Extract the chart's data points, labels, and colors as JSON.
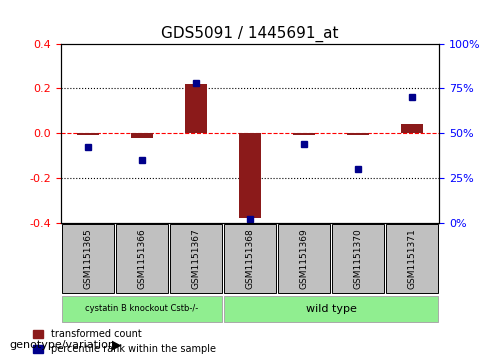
{
  "title": "GDS5091 / 1445691_at",
  "samples": [
    "GSM1151365",
    "GSM1151366",
    "GSM1151367",
    "GSM1151368",
    "GSM1151369",
    "GSM1151370",
    "GSM1151371"
  ],
  "red_values": [
    -0.01,
    -0.02,
    0.22,
    -0.38,
    -0.01,
    -0.01,
    0.04
  ],
  "blue_values": [
    42,
    35,
    78,
    2,
    44,
    30,
    70
  ],
  "ylim_left": [
    -0.4,
    0.4
  ],
  "ylim_right": [
    0,
    100
  ],
  "yticks_left": [
    -0.4,
    -0.2,
    0.0,
    0.2,
    0.4
  ],
  "yticks_right": [
    0,
    25,
    50,
    75,
    100
  ],
  "ytick_labels_right": [
    "0%",
    "25%",
    "50%",
    "75%",
    "100%"
  ],
  "hlines": [
    0.2,
    0.0,
    -0.2
  ],
  "hline_styles": [
    "dotted",
    "dashed",
    "dotted"
  ],
  "hline_colors": [
    "black",
    "red",
    "black"
  ],
  "group1_label": "cystatin B knockout Cstb-/-",
  "group2_label": "wild type",
  "group1_indices": [
    0,
    1,
    2
  ],
  "group2_indices": [
    3,
    4,
    5,
    6
  ],
  "group1_color": "#90EE90",
  "group2_color": "#90EE90",
  "bar_color": "#8B1A1A",
  "dot_color": "#00008B",
  "bg_plot_color": "#FFFFFF",
  "bg_sample_color": "#C0C0C0",
  "legend_red_label": "transformed count",
  "legend_blue_label": "percentile rank within the sample",
  "genotype_label": "genotype/variation"
}
